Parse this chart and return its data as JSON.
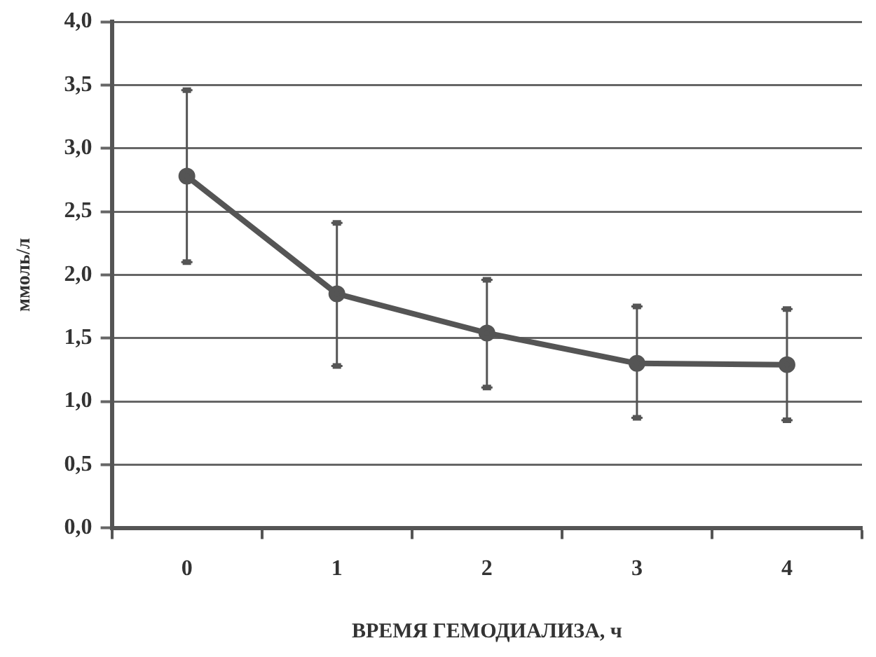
{
  "chart_data": {
    "type": "line",
    "xlabel": "ВРЕМЯ ГЕМОДИАЛИЗА, ч",
    "ylabel": "ммоль/л",
    "categories": [
      "0",
      "1",
      "2",
      "3",
      "4"
    ],
    "series": [
      {
        "color": "#555555",
        "values": [
          2.78,
          1.85,
          1.54,
          1.3,
          1.29
        ],
        "errors": [
          [
            2.1,
            3.46
          ],
          [
            1.28,
            2.41
          ],
          [
            1.11,
            1.96
          ],
          [
            0.87,
            1.75
          ],
          [
            0.85,
            1.73
          ]
        ]
      }
    ],
    "ylim": [
      0,
      4
    ],
    "yticks": [
      {
        "value": 0,
        "label": "0,0"
      },
      {
        "value": 0.5,
        "label": "0,5"
      },
      {
        "value": 1,
        "label": "1,0"
      },
      {
        "value": 1.5,
        "label": "1,5"
      },
      {
        "value": 2,
        "label": "2,0"
      },
      {
        "value": 2.5,
        "label": "2,5"
      },
      {
        "value": 3,
        "label": "3,0"
      },
      {
        "value": 3.5,
        "label": "3,5"
      },
      {
        "value": 4,
        "label": "4,0"
      }
    ],
    "grid": "y",
    "marker": "circle",
    "legend": false
  }
}
